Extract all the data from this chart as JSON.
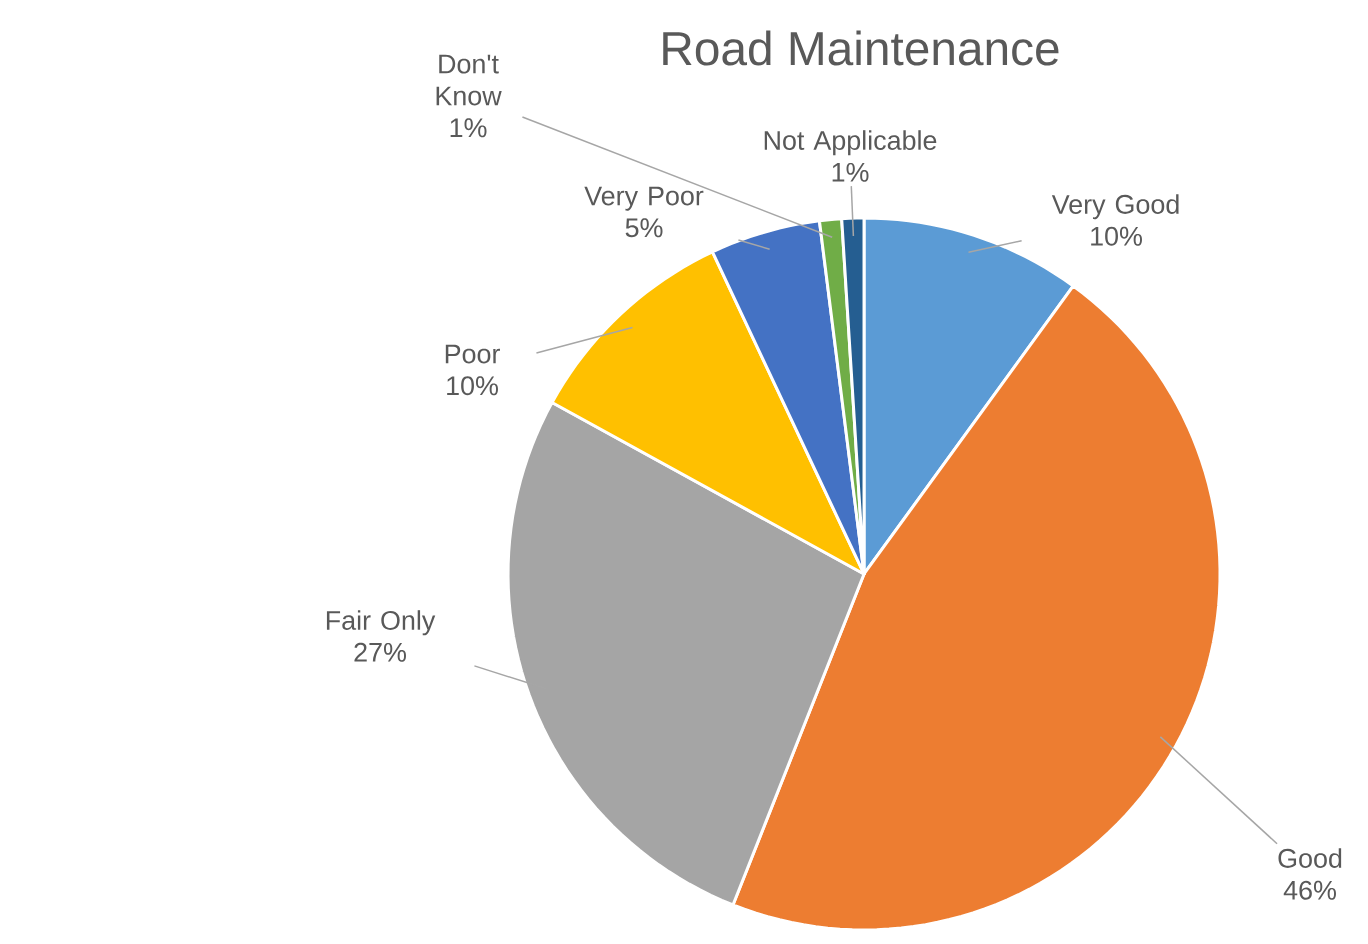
{
  "chart_data": {
    "type": "pie",
    "title": "Road Maintenance",
    "categories": [
      "Very Good",
      "Good",
      "Fair Only",
      "Poor",
      "Very Poor",
      "Don't Know",
      "Not Applicable"
    ],
    "values": [
      10,
      46,
      27,
      10,
      5,
      1,
      1
    ],
    "value_labels": [
      "10%",
      "46%",
      "27%",
      "10%",
      "5%",
      "1%",
      "1%"
    ],
    "colors": [
      "#5b9bd5",
      "#ed7d31",
      "#a5a5a5",
      "#ffc000",
      "#4472c4",
      "#70ad47",
      "#255e91"
    ]
  }
}
